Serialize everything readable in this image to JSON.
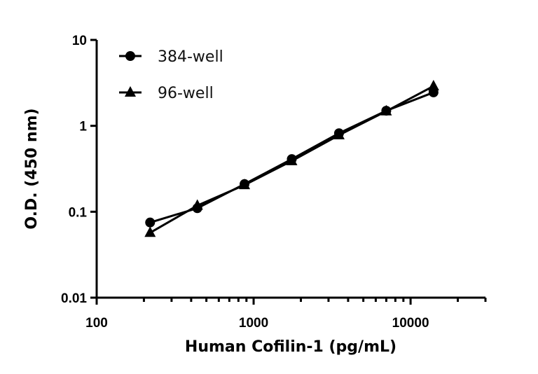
{
  "chart_data": {
    "type": "line",
    "title": "",
    "xlabel": "Human Cofilin-1 (pg/mL)",
    "ylabel": "O.D. (450 nm)",
    "xscale": "log",
    "yscale": "log",
    "xlim": [
      100,
      30000
    ],
    "ylim": [
      0.01,
      10
    ],
    "x_ticks": [
      "100",
      "1000",
      "10000"
    ],
    "y_ticks": [
      "0.01",
      "0.1",
      "1",
      "10"
    ],
    "grid": false,
    "legend_position": "top-left",
    "x": [
      219,
      438,
      875,
      1750,
      3500,
      7000,
      14000
    ],
    "series": [
      {
        "name": "384-well",
        "marker": "circle",
        "values": [
          0.075,
          0.11,
          0.21,
          0.41,
          0.82,
          1.5,
          2.45
        ]
      },
      {
        "name": "96-well",
        "marker": "triangle",
        "values": [
          0.057,
          0.118,
          0.205,
          0.39,
          0.78,
          1.48,
          2.9
        ]
      }
    ],
    "color": "#000000"
  }
}
